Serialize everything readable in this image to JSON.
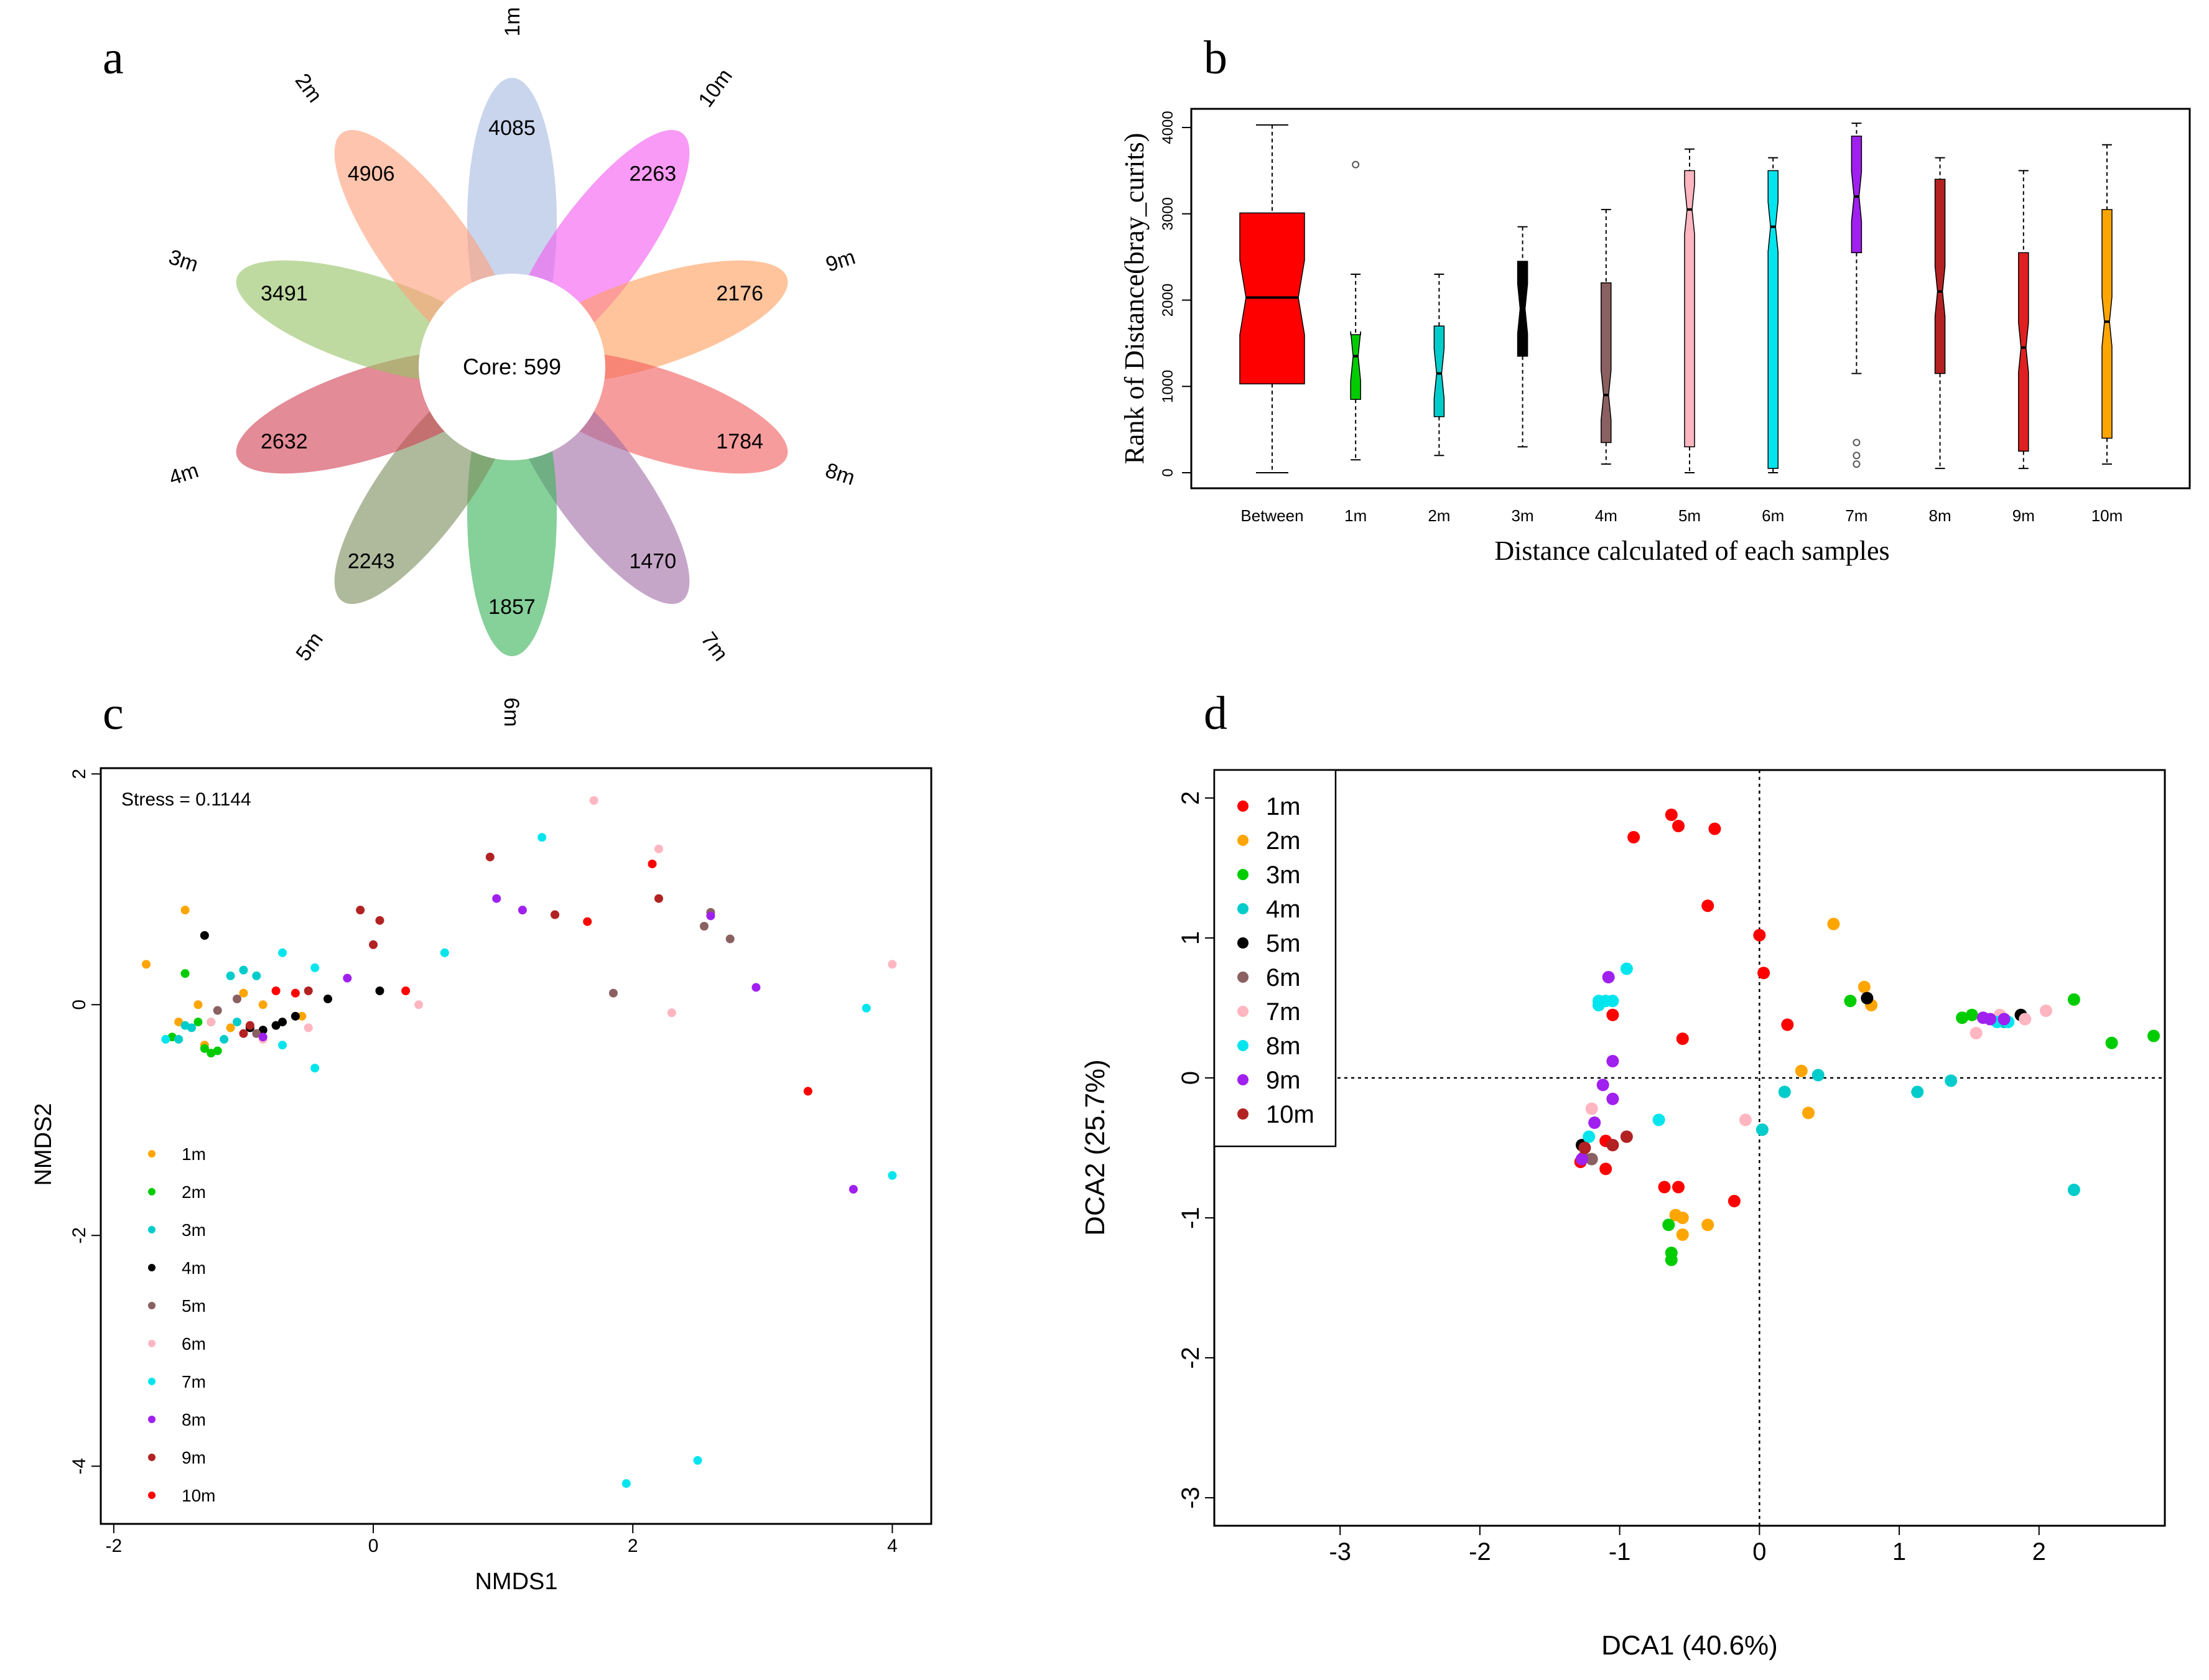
{
  "panels": {
    "a": "a",
    "b": "b",
    "c": "c",
    "d": "d"
  },
  "colors": {
    "1m": "#FFA500",
    "2m": "#00CC00",
    "3m": "#00CCCC",
    "4m": "#000000",
    "5m": "#8B6060",
    "6m": "#FFB6C1",
    "7m": "#00E5EE",
    "8m": "#A020F0",
    "9m": "#B22222",
    "10m": "#FF0000"
  },
  "chart_data": [
    {
      "panel": "a",
      "type": "flower",
      "core_label": "Core: 599",
      "petals": [
        {
          "sample": "1m",
          "unique": "4085",
          "color": "#A8BCE0"
        },
        {
          "sample": "10m",
          "unique": "2263",
          "color": "#F45CF0"
        },
        {
          "sample": "9m",
          "unique": "2176",
          "color": "#FFA060"
        },
        {
          "sample": "8m",
          "unique": "1784",
          "color": "#F26060"
        },
        {
          "sample": "7m",
          "unique": "1470",
          "color": "#A26FA6"
        },
        {
          "sample": "6m",
          "unique": "1857",
          "color": "#3CB35A"
        },
        {
          "sample": "5m",
          "unique": "2243",
          "color": "#7E8E60"
        },
        {
          "sample": "4m",
          "unique": "2632",
          "color": "#D24455"
        },
        {
          "sample": "3m",
          "unique": "3491",
          "color": "#98C468"
        },
        {
          "sample": "2m",
          "unique": "4906",
          "color": "#FFA07A"
        }
      ]
    },
    {
      "panel": "b",
      "type": "box",
      "xlabel": "Distance calculated of each samples",
      "ylabel": "Rank of Distance(bray_curits)",
      "ylim": [
        0,
        4100
      ],
      "yticks": [
        0,
        1000,
        2000,
        3000,
        4000
      ],
      "categories": [
        "Between",
        "1m",
        "2m",
        "3m",
        "4m",
        "5m",
        "6m",
        "7m",
        "8m",
        "9m",
        "10m"
      ],
      "boxes": [
        {
          "min": 0,
          "q1": 1030,
          "median": 2030,
          "q3": 3010,
          "max": 4030,
          "notch": 2030,
          "color": "#FF0000",
          "wide": true,
          "outliers": []
        },
        {
          "min": 150,
          "q1": 850,
          "median": 1350,
          "q3": 1600,
          "max": 2300,
          "notch": 1350,
          "color": "#00CC00",
          "outliers": [
            3570
          ]
        },
        {
          "min": 200,
          "q1": 650,
          "median": 1150,
          "q3": 1700,
          "max": 2300,
          "notch": 1150,
          "color": "#00CCCC",
          "outliers": []
        },
        {
          "min": 300,
          "q1": 1350,
          "median": 1900,
          "q3": 2450,
          "max": 2850,
          "notch": 1900,
          "color": "#000000",
          "outliers": []
        },
        {
          "min": 100,
          "q1": 350,
          "median": 900,
          "q3": 2200,
          "max": 3050,
          "notch": 900,
          "color": "#8B6060",
          "outliers": []
        },
        {
          "min": 0,
          "q1": 300,
          "median": 3050,
          "q3": 3500,
          "max": 3750,
          "notch": 3050,
          "color": "#FFB6C1",
          "outliers": []
        },
        {
          "min": 0,
          "q1": 50,
          "median": 2850,
          "q3": 3500,
          "max": 3650,
          "notch": 2850,
          "color": "#00E5EE",
          "outliers": []
        },
        {
          "min": 1150,
          "q1": 2550,
          "median": 3200,
          "q3": 3900,
          "max": 4050,
          "notch": 3200,
          "color": "#A020F0",
          "outliers": [
            350,
            200,
            100
          ]
        },
        {
          "min": 50,
          "q1": 1150,
          "median": 2100,
          "q3": 3400,
          "max": 3650,
          "notch": 2100,
          "color": "#B22222",
          "outliers": []
        },
        {
          "min": 50,
          "q1": 250,
          "median": 1450,
          "q3": 2550,
          "max": 3500,
          "notch": 1450,
          "color": "#E02020",
          "outliers": []
        },
        {
          "min": 100,
          "q1": 400,
          "median": 1750,
          "q3": 3050,
          "max": 3800,
          "notch": 1750,
          "color": "#FFA500",
          "outliers": []
        }
      ]
    },
    {
      "panel": "c",
      "type": "scatter",
      "xlabel": "NMDS1",
      "ylabel": "NMDS2",
      "annotation": "Stress = 0.1144",
      "xlim": [
        -2.1,
        4.3
      ],
      "ylim": [
        -4.5,
        2.05
      ],
      "xticks": [
        -2,
        0,
        2,
        4
      ],
      "yticks": [
        -4,
        -2,
        0,
        2
      ],
      "legend": [
        "1m",
        "2m",
        "3m",
        "4m",
        "5m",
        "6m",
        "7m",
        "8m",
        "9m",
        "10m"
      ],
      "points": {
        "1m": [
          [
            -1.75,
            0.35
          ],
          [
            -1.45,
            0.82
          ],
          [
            -1.35,
            0.0
          ],
          [
            -1.5,
            -0.15
          ],
          [
            -1.0,
            0.1
          ],
          [
            -0.85,
            0.0
          ],
          [
            -1.1,
            -0.2
          ],
          [
            -1.3,
            -0.35
          ],
          [
            -0.55,
            -0.1
          ]
        ],
        "2m": [
          [
            -1.45,
            0.27
          ],
          [
            -1.3,
            -0.38
          ],
          [
            -1.25,
            -0.42
          ],
          [
            -1.2,
            -0.4
          ],
          [
            -1.55,
            -0.28
          ],
          [
            -1.35,
            -0.15
          ],
          [
            -1.25,
            -0.15
          ]
        ],
        "3m": [
          [
            -1.4,
            -0.2
          ],
          [
            -1.1,
            0.25
          ],
          [
            -1.0,
            0.3
          ],
          [
            -0.9,
            0.25
          ],
          [
            -1.15,
            -0.3
          ],
          [
            -1.05,
            -0.15
          ],
          [
            -1.5,
            -0.3
          ],
          [
            -1.45,
            -0.18
          ]
        ],
        "4m": [
          [
            -1.3,
            0.6
          ],
          [
            -0.7,
            -0.15
          ],
          [
            -0.6,
            -0.1
          ],
          [
            -0.35,
            0.05
          ],
          [
            0.05,
            0.12
          ],
          [
            -0.95,
            -0.2
          ],
          [
            -0.85,
            -0.22
          ],
          [
            -0.75,
            -0.18
          ]
        ],
        "5m": [
          [
            -1.2,
            -0.05
          ],
          [
            -1.05,
            0.05
          ],
          [
            1.4,
            0.78
          ],
          [
            1.85,
            0.1
          ],
          [
            2.55,
            0.68
          ],
          [
            2.6,
            0.8
          ],
          [
            2.75,
            0.57
          ],
          [
            -0.9,
            -0.25
          ]
        ],
        "6m": [
          [
            -0.5,
            -0.2
          ],
          [
            0.35,
            0.0
          ],
          [
            1.7,
            1.77
          ],
          [
            2.2,
            1.35
          ],
          [
            2.3,
            -0.07
          ],
          [
            4.0,
            0.35
          ],
          [
            -1.25,
            -0.15
          ],
          [
            -0.85,
            -0.3
          ]
        ],
        "7m": [
          [
            -0.7,
            0.45
          ],
          [
            -0.45,
            0.32
          ],
          [
            -0.45,
            -0.55
          ],
          [
            -0.7,
            -0.35
          ],
          [
            0.55,
            0.45
          ],
          [
            1.3,
            1.45
          ],
          [
            1.95,
            -4.15
          ],
          [
            2.5,
            -3.95
          ],
          [
            3.8,
            -0.03
          ],
          [
            4.0,
            -1.48
          ],
          [
            -1.6,
            -0.3
          ]
        ],
        "8m": [
          [
            -0.2,
            0.23
          ],
          [
            0.95,
            0.92
          ],
          [
            1.15,
            0.82
          ],
          [
            2.6,
            0.77
          ],
          [
            2.95,
            0.15
          ],
          [
            3.7,
            -1.6
          ],
          [
            -0.85,
            -0.28
          ]
        ],
        "9m": [
          [
            -0.1,
            0.82
          ],
          [
            0.0,
            0.52
          ],
          [
            0.05,
            0.73
          ],
          [
            0.9,
            1.28
          ],
          [
            1.4,
            0.78
          ],
          [
            2.2,
            0.92
          ],
          [
            -0.5,
            0.12
          ],
          [
            -0.95,
            -0.18
          ],
          [
            -1.0,
            -0.25
          ]
        ],
        "10m": [
          [
            -0.6,
            0.1
          ],
          [
            0.25,
            0.12
          ],
          [
            1.65,
            0.72
          ],
          [
            2.15,
            1.22
          ],
          [
            3.35,
            -0.75
          ],
          [
            -0.75,
            0.12
          ]
        ]
      }
    },
    {
      "panel": "d",
      "type": "scatter",
      "xlabel": "DCA1 (40.6%)",
      "ylabel": "DCA2 (25.7%)",
      "xlim": [
        -3.9,
        2.9
      ],
      "ylim": [
        -3.2,
        2.2
      ],
      "xticks": [
        -3,
        -2,
        -1,
        0,
        1,
        2
      ],
      "yticks": [
        -3,
        -2,
        -1,
        0,
        1,
        2
      ],
      "legend": [
        "1m",
        "2m",
        "3m",
        "4m",
        "5m",
        "6m",
        "7m",
        "8m",
        "9m",
        "10m"
      ],
      "series_colors": {
        "1m": "#FF0000",
        "2m": "#FFA500",
        "3m": "#00CC00",
        "4m": "#00CCCC",
        "5m": "#000000",
        "6m": "#8B6060",
        "7m": "#FFB6C1",
        "8m": "#00E5EE",
        "9m": "#A020F0",
        "10m": "#B22222"
      },
      "points": {
        "1m": [
          [
            -0.9,
            1.72
          ],
          [
            -0.63,
            1.88
          ],
          [
            -0.58,
            1.8
          ],
          [
            -0.32,
            1.78
          ],
          [
            -0.37,
            1.23
          ],
          [
            0.0,
            1.02
          ],
          [
            0.03,
            0.75
          ],
          [
            0.2,
            0.38
          ],
          [
            -0.55,
            0.28
          ],
          [
            -1.05,
            0.45
          ],
          [
            -1.1,
            -0.45
          ],
          [
            -1.1,
            -0.65
          ],
          [
            -0.68,
            -0.78
          ],
          [
            -0.58,
            -0.78
          ],
          [
            -0.18,
            -0.88
          ],
          [
            -1.28,
            -0.6
          ]
        ],
        "2m": [
          [
            0.53,
            1.1
          ],
          [
            0.75,
            0.65
          ],
          [
            0.8,
            0.52
          ],
          [
            0.3,
            0.05
          ],
          [
            0.35,
            -0.25
          ],
          [
            -0.6,
            -0.98
          ],
          [
            -0.55,
            -1.0
          ],
          [
            -0.37,
            -1.05
          ],
          [
            -0.55,
            -1.12
          ]
        ],
        "3m": [
          [
            0.65,
            0.55
          ],
          [
            1.45,
            0.43
          ],
          [
            1.52,
            0.45
          ],
          [
            2.25,
            0.56
          ],
          [
            2.52,
            0.25
          ],
          [
            2.82,
            0.3
          ],
          [
            -0.65,
            -1.05
          ],
          [
            -0.63,
            -1.25
          ],
          [
            -0.63,
            -1.3
          ]
        ],
        "4m": [
          [
            0.18,
            -0.1
          ],
          [
            0.42,
            0.02
          ],
          [
            1.13,
            -0.1
          ],
          [
            1.37,
            -0.02
          ],
          [
            1.65,
            0.42
          ],
          [
            1.75,
            0.4
          ],
          [
            2.25,
            -0.8
          ],
          [
            0.02,
            -0.37
          ]
        ],
        "5m": [
          [
            0.77,
            0.57
          ],
          [
            1.87,
            0.45
          ],
          [
            -1.27,
            -0.48
          ]
        ],
        "6m": [
          [
            -1.26,
            -0.57
          ],
          [
            -1.2,
            -0.58
          ],
          [
            1.75,
            0.42
          ]
        ],
        "7m": [
          [
            -0.1,
            -0.3
          ],
          [
            1.55,
            0.32
          ],
          [
            1.72,
            0.45
          ],
          [
            2.05,
            0.48
          ],
          [
            1.9,
            0.42
          ],
          [
            -1.2,
            -0.22
          ]
        ],
        "8m": [
          [
            -0.95,
            0.78
          ],
          [
            -1.05,
            0.55
          ],
          [
            -1.1,
            0.55
          ],
          [
            -1.15,
            0.52
          ],
          [
            -1.15,
            0.55
          ],
          [
            -0.72,
            -0.3
          ],
          [
            -1.22,
            -0.42
          ],
          [
            1.7,
            0.4
          ],
          [
            1.78,
            0.4
          ]
        ],
        "9m": [
          [
            -1.08,
            0.72
          ],
          [
            -1.05,
            0.12
          ],
          [
            -1.05,
            -0.15
          ],
          [
            -1.12,
            -0.05
          ],
          [
            -1.18,
            -0.32
          ],
          [
            1.6,
            0.43
          ],
          [
            1.65,
            0.42
          ],
          [
            1.75,
            0.42
          ],
          [
            -1.27,
            -0.58
          ]
        ],
        "10m": [
          [
            -1.05,
            -0.48
          ],
          [
            -0.95,
            -0.42
          ],
          [
            -1.25,
            -0.5
          ]
        ]
      }
    }
  ]
}
